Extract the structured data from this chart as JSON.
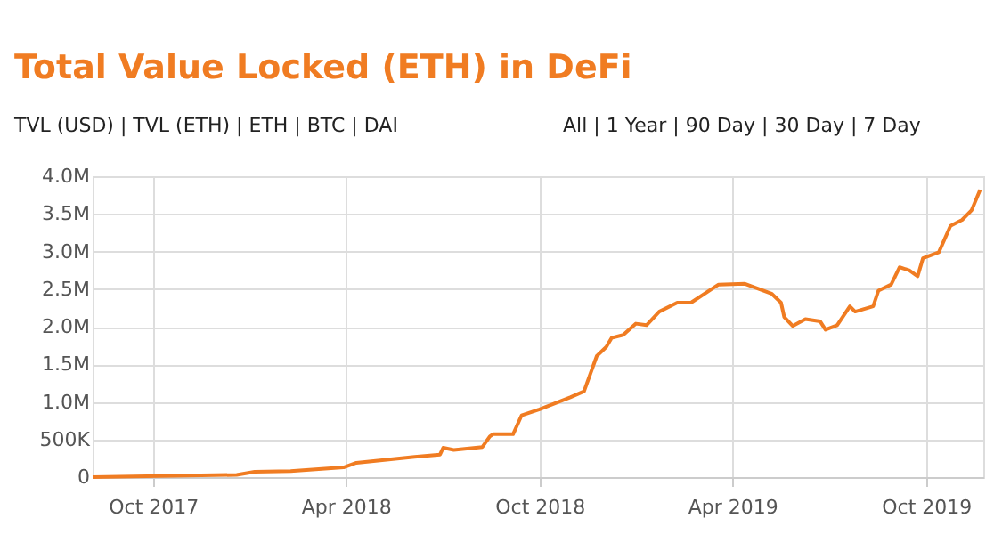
{
  "chart_data": {
    "type": "line",
    "title": "Total Value Locked (ETH) in DeFi",
    "annotations": [
      "TVL (USD) | TVL (ETH) | ETH | BTC | DAI",
      "All | 1 Year | 90 Day | 30 Day | 7 Day"
    ],
    "x": [
      "2017-08-05",
      "2017-12-19",
      "2018-01-05",
      "2018-02-08",
      "2018-03-30",
      "2018-04-11",
      "2018-06-05",
      "2018-06-29",
      "2018-07-02",
      "2018-07-12",
      "2018-08-08",
      "2018-08-15",
      "2018-08-18",
      "2018-09-06",
      "2018-09-14",
      "2018-10-01",
      "2018-10-30",
      "2018-11-12",
      "2018-11-24",
      "2018-12-03",
      "2018-12-08",
      "2018-12-19",
      "2018-12-31",
      "2019-01-10",
      "2019-01-22",
      "2019-02-08",
      "2019-02-21",
      "2019-03-19",
      "2019-04-13",
      "2019-05-08",
      "2019-05-17",
      "2019-05-20",
      "2019-05-28",
      "2019-06-09",
      "2019-06-23",
      "2019-06-28",
      "2019-07-09",
      "2019-07-21",
      "2019-07-26",
      "2019-08-12",
      "2019-08-17",
      "2019-08-29",
      "2019-09-06",
      "2019-09-15",
      "2019-09-23",
      "2019-09-28",
      "2019-10-13",
      "2019-10-24",
      "2019-11-04",
      "2019-11-13",
      "2019-11-21"
    ],
    "series": [
      {
        "color": "#f07c22",
        "values": [
          0,
          30000,
          70000,
          80000,
          130000,
          190000,
          270000,
          300000,
          390000,
          360000,
          400000,
          540000,
          570000,
          570000,
          820000,
          900000,
          1060000,
          1140000,
          1610000,
          1730000,
          1850000,
          1890000,
          2040000,
          2020000,
          2200000,
          2320000,
          2320000,
          2560000,
          2570000,
          2440000,
          2320000,
          2130000,
          2010000,
          2100000,
          2070000,
          1960000,
          2020000,
          2270000,
          2200000,
          2270000,
          2480000,
          2560000,
          2790000,
          2750000,
          2670000,
          2910000,
          2990000,
          3340000,
          3420000,
          3550000,
          3820000
        ]
      }
    ],
    "xlim": [
      "2017-08-05",
      "2019-11-24"
    ],
    "xticks": [
      {
        "value": "2017-10-01",
        "label": "Oct 2017"
      },
      {
        "value": "2018-04-01",
        "label": "Apr 2018"
      },
      {
        "value": "2018-10-01",
        "label": "Oct 2018"
      },
      {
        "value": "2019-04-01",
        "label": "Apr 2019"
      },
      {
        "value": "2019-10-01",
        "label": "Oct 2019"
      }
    ],
    "ylim": [
      0,
      4000000
    ],
    "yticks": [
      0,
      {
        "value": 500000,
        "label": "500K"
      },
      {
        "value": 1000000,
        "label": "1.0M"
      },
      {
        "value": 1500000,
        "label": "1.5M"
      },
      {
        "value": 2000000,
        "label": "2.0M"
      },
      {
        "value": 2500000,
        "label": "2.5M"
      },
      {
        "value": 3000000,
        "label": "3.0M"
      },
      {
        "value": 3500000,
        "label": "3.5M"
      },
      {
        "value": 4000000,
        "label": "4.0M"
      }
    ],
    "grid": true,
    "marker": "none",
    "line_style": "solid"
  }
}
